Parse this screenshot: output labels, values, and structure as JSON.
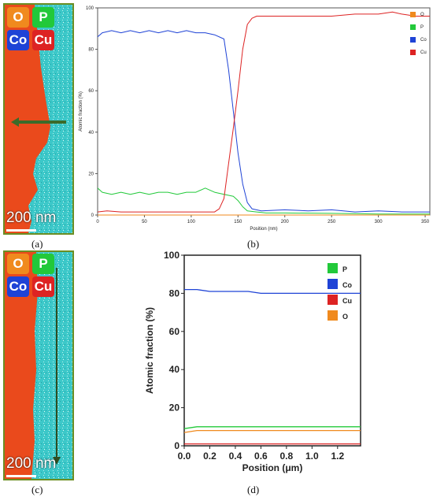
{
  "panel_labels": {
    "a": "(a)",
    "b": "(b)",
    "c": "(c)",
    "d": "(d)"
  },
  "map_badges": [
    {
      "label": "O",
      "color": "#f08a1e"
    },
    {
      "label": "P",
      "color": "#22c93a"
    },
    {
      "label": "Co",
      "color": "#1f43d6"
    },
    {
      "label": "Cu",
      "color": "#dd2323"
    }
  ],
  "scale_bar": "200 nm",
  "colors": {
    "cu_region": "#ea4a1c",
    "co_region": "#3cc8c9",
    "arrow": "#3b6b2a"
  },
  "chart_data": [
    {
      "id": "b",
      "type": "line",
      "title": "",
      "xlabel": "Position (nm)",
      "ylabel": "Atomic fraction (%)",
      "xlim": [
        0,
        355
      ],
      "ylim": [
        0,
        100
      ],
      "xticks": [
        0,
        50,
        100,
        150,
        200,
        250,
        300,
        350
      ],
      "yticks": [
        0,
        20,
        40,
        60,
        80,
        100
      ],
      "legend_position": "top-right",
      "series": [
        {
          "name": "O",
          "color": "#f08a1e",
          "x": [
            0,
            355
          ],
          "y": [
            0,
            0
          ]
        },
        {
          "name": "P",
          "color": "#22c93a",
          "x": [
            0,
            5,
            15,
            25,
            35,
            45,
            55,
            65,
            75,
            85,
            95,
            105,
            115,
            125,
            135,
            145,
            150,
            155,
            160,
            170,
            180,
            200,
            250,
            300,
            355
          ],
          "y": [
            13,
            11,
            10,
            11,
            10,
            11,
            10,
            11,
            11,
            10,
            11,
            11,
            13,
            11,
            10,
            9,
            7,
            4,
            2,
            1.5,
            1,
            1,
            0.8,
            0.5,
            0.5
          ]
        },
        {
          "name": "Co",
          "color": "#1f43d6",
          "x": [
            0,
            5,
            15,
            25,
            35,
            45,
            55,
            65,
            75,
            85,
            95,
            105,
            115,
            125,
            135,
            140,
            145,
            150,
            155,
            160,
            165,
            175,
            200,
            225,
            250,
            275,
            300,
            325,
            355
          ],
          "y": [
            86,
            88,
            89,
            88,
            89,
            88,
            89,
            88,
            89,
            88,
            89,
            88,
            88,
            87,
            85,
            70,
            50,
            30,
            15,
            6,
            3,
            2,
            2.5,
            2,
            2.5,
            1.5,
            2,
            1.5,
            1.5
          ]
        },
        {
          "name": "Cu",
          "color": "#dd2323",
          "x": [
            0,
            10,
            25,
            50,
            75,
            100,
            125,
            130,
            135,
            140,
            145,
            150,
            155,
            160,
            165,
            170,
            180,
            200,
            225,
            250,
            275,
            300,
            315,
            325,
            340,
            355
          ],
          "y": [
            1.5,
            2,
            1.5,
            1.5,
            1.5,
            1.5,
            1.5,
            3,
            8,
            25,
            42,
            60,
            80,
            92,
            95,
            96,
            96,
            96,
            96,
            96,
            97,
            97,
            98,
            97,
            96,
            96
          ]
        }
      ]
    },
    {
      "id": "d",
      "type": "line",
      "title": "",
      "xlabel": "Position (μm)",
      "ylabel": "Atomic fraction (%)",
      "xlim": [
        0,
        1.38
      ],
      "ylim": [
        0,
        100
      ],
      "xticks": [
        0.0,
        0.2,
        0.4,
        0.6,
        0.8,
        1.0,
        1.2
      ],
      "xtick_labels": [
        "0.0",
        "0.2",
        "0.4",
        "0.6",
        "0.8",
        "1.0",
        "1.2"
      ],
      "yticks": [
        0,
        20,
        40,
        60,
        80,
        100
      ],
      "legend_position": "top-right",
      "series": [
        {
          "name": "P",
          "color": "#22c93a",
          "x": [
            0.0,
            0.1,
            0.2,
            0.3,
            0.4,
            0.5,
            0.6,
            0.7,
            0.8,
            0.9,
            1.0,
            1.1,
            1.2,
            1.3,
            1.38
          ],
          "y": [
            9,
            10,
            10,
            10,
            10,
            10,
            10,
            10,
            10,
            10,
            10,
            10,
            10,
            10,
            10
          ]
        },
        {
          "name": "Co",
          "color": "#1f43d6",
          "x": [
            0.0,
            0.1,
            0.2,
            0.3,
            0.4,
            0.5,
            0.6,
            0.7,
            0.8,
            0.9,
            1.0,
            1.1,
            1.2,
            1.3,
            1.38
          ],
          "y": [
            82,
            82,
            81,
            81,
            81,
            81,
            80,
            80,
            80,
            80,
            80,
            80,
            80,
            80,
            80
          ]
        },
        {
          "name": "Cu",
          "color": "#dd2323",
          "x": [
            0.0,
            0.2,
            0.4,
            0.6,
            0.8,
            1.0,
            1.2,
            1.38
          ],
          "y": [
            1,
            1,
            1,
            1,
            1,
            1,
            1,
            1
          ]
        },
        {
          "name": "O",
          "color": "#f08a1e",
          "x": [
            0.0,
            0.1,
            0.2,
            0.3,
            0.4,
            0.5,
            0.6,
            0.7,
            0.8,
            0.9,
            1.0,
            1.1,
            1.2,
            1.3,
            1.38
          ],
          "y": [
            7,
            8,
            8,
            8,
            8,
            8,
            8,
            8,
            8,
            8,
            8,
            8,
            8,
            8,
            8
          ]
        }
      ]
    }
  ]
}
